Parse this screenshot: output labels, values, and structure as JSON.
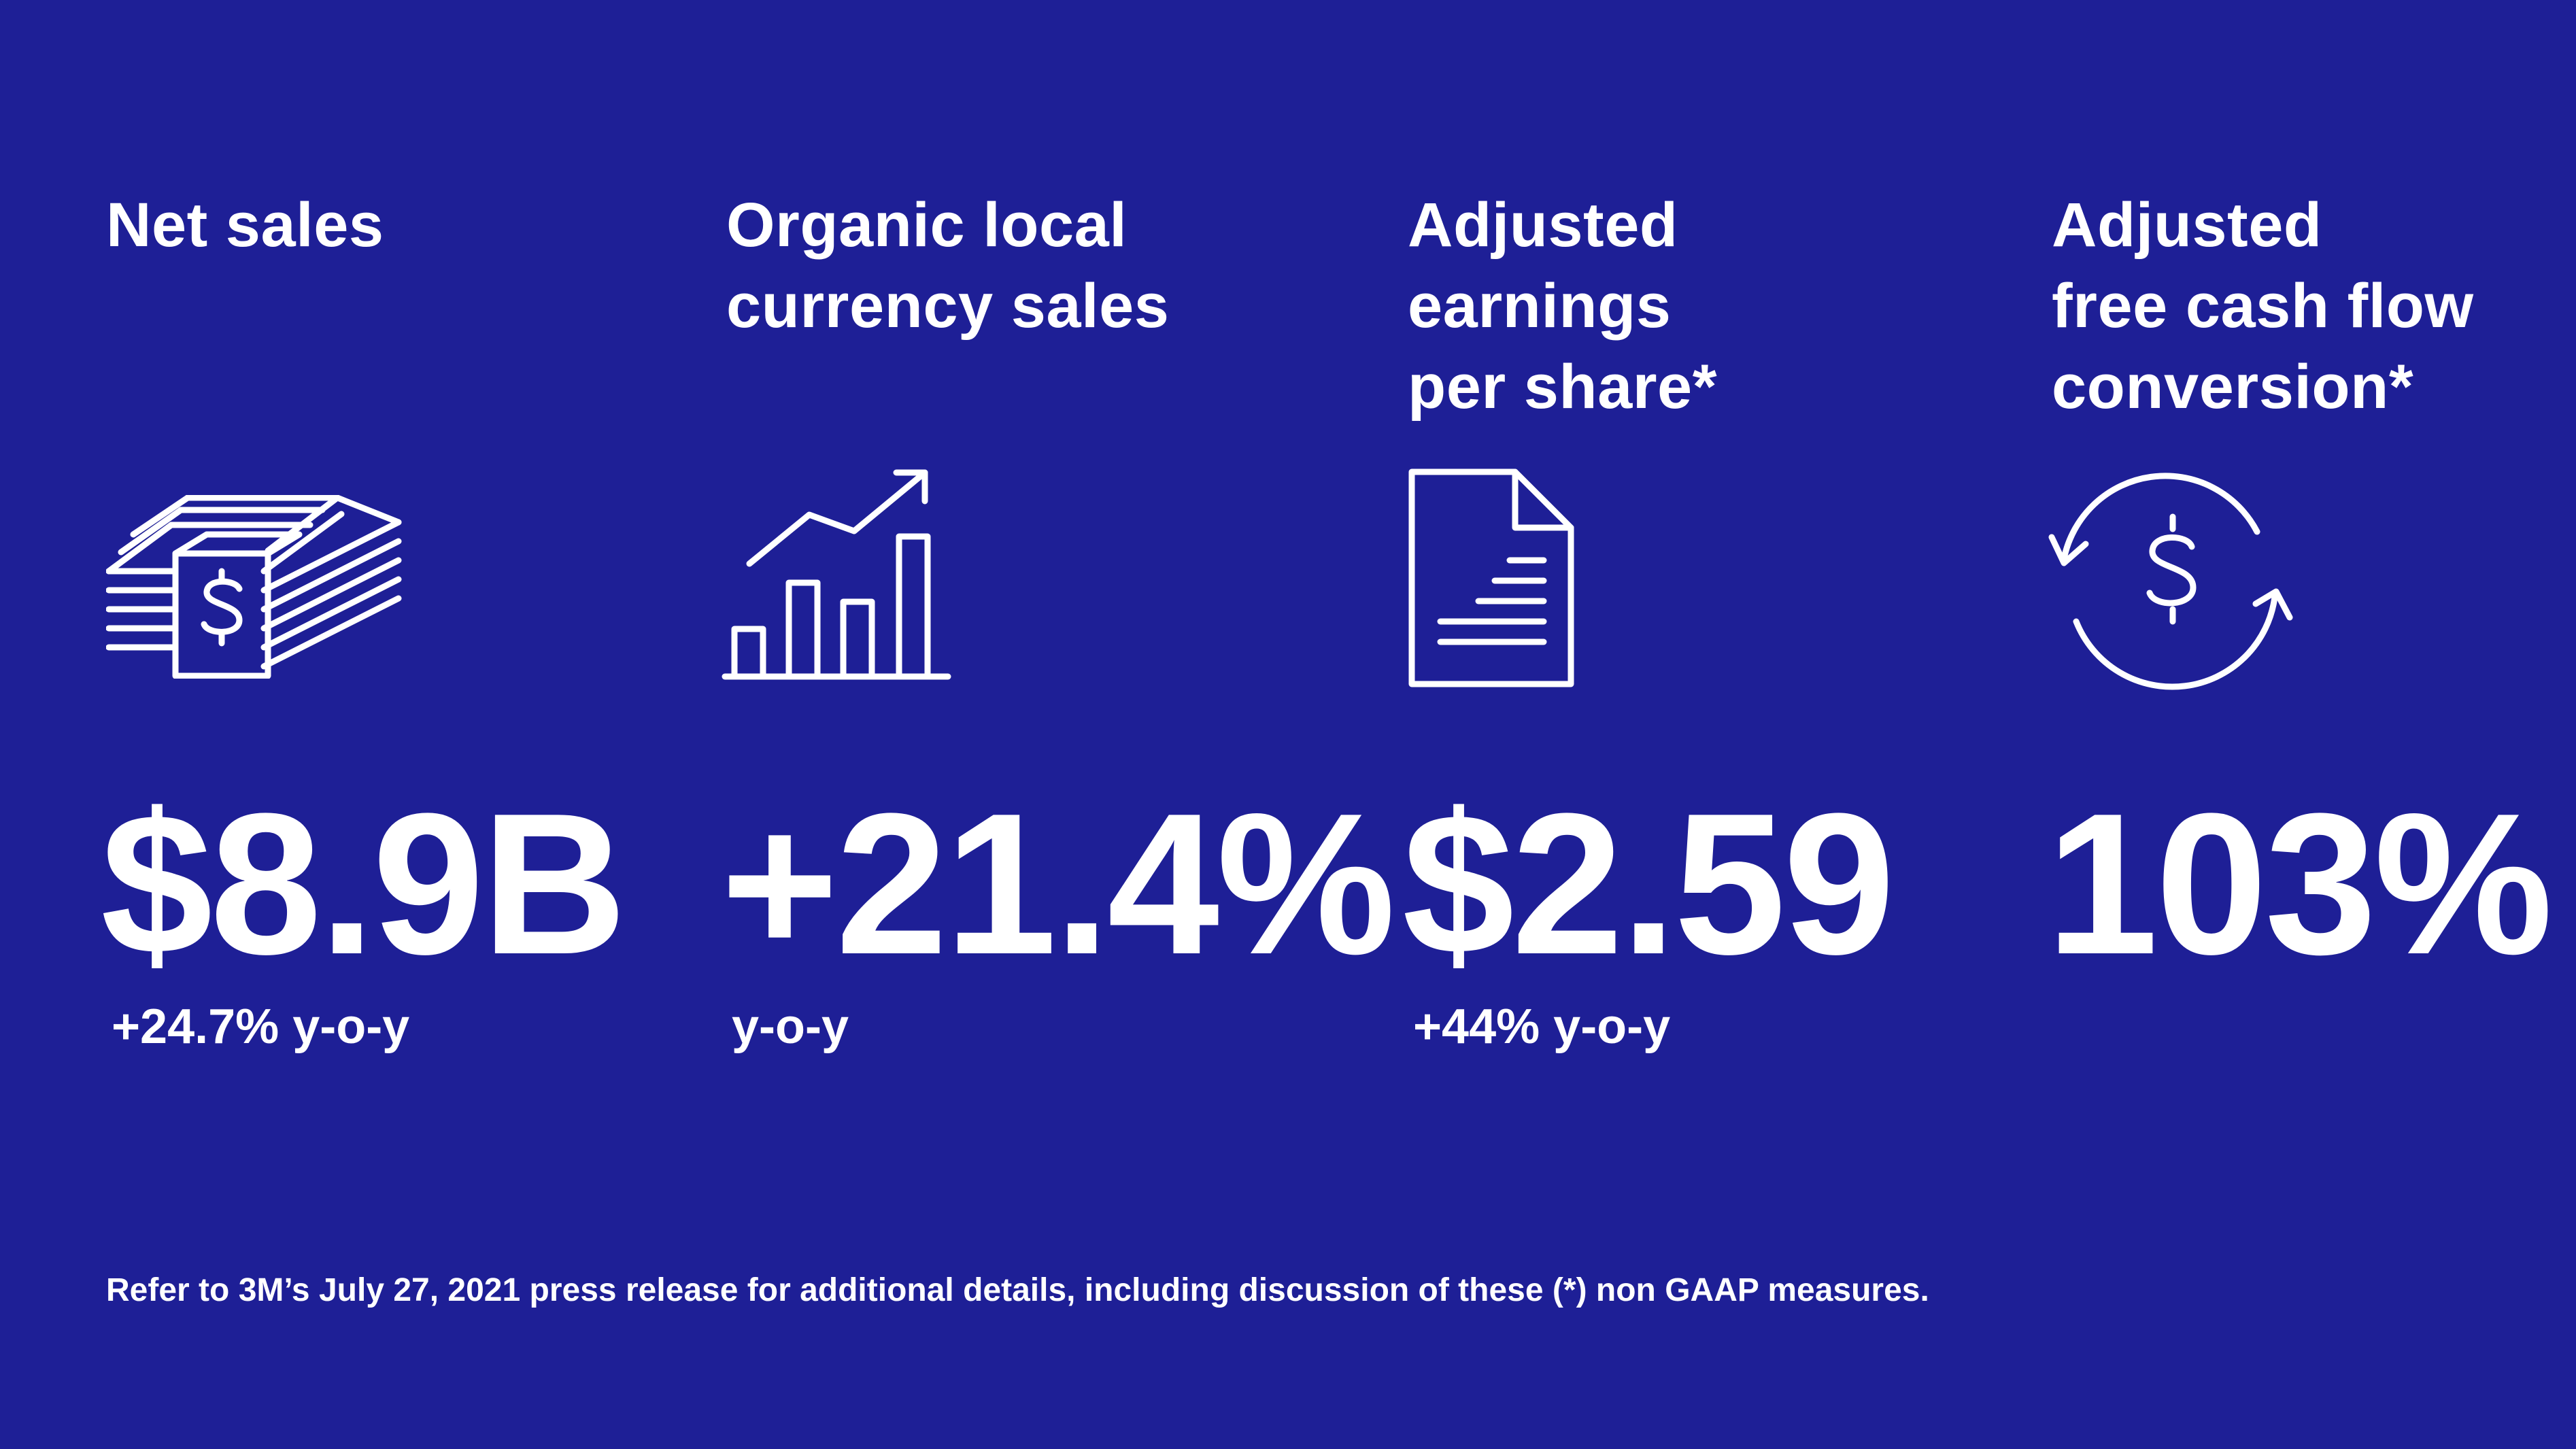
{
  "metrics": [
    {
      "heading": "Net sales",
      "icon": "money-stack-icon",
      "value": "$8.9B",
      "sub": "+24.7% y-o-y"
    },
    {
      "heading": "Organic local\ncurrency sales",
      "icon": "bar-chart-growth-icon",
      "value": "+21.4%",
      "sub": "y-o-y"
    },
    {
      "heading": "Adjusted\nearnings\nper share*",
      "icon": "document-icon",
      "value": "$2.59",
      "sub": "+44% y-o-y"
    },
    {
      "heading": "Adjusted\nfree cash flow\nconversion*",
      "icon": "dollar-cycle-icon",
      "value": "103%",
      "sub": ""
    }
  ],
  "footnote": "Refer to 3M’s July 27, 2021 press release for additional details, including discussion of these (*) non GAAP measures.",
  "colors": {
    "background": "#1e1f96",
    "foreground": "#ffffff"
  }
}
